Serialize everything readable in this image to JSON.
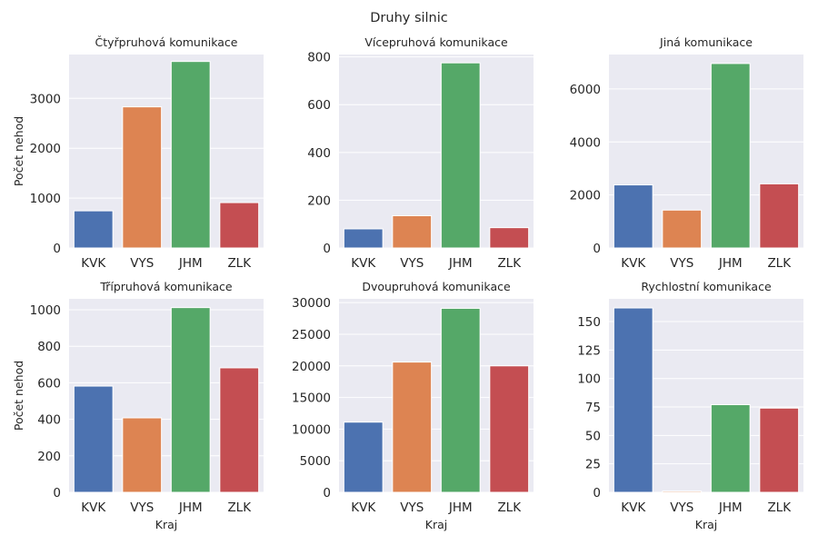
{
  "chart_data": {
    "type": "bar",
    "suptitle": "Druhy silnic",
    "grid": true,
    "colors": [
      "#4c72b0",
      "#dd8452",
      "#55a868",
      "#c44e52"
    ],
    "subplots": [
      {
        "title": "Čtyřpruhová komunikace",
        "categories": [
          "KVK",
          "VYS",
          "JHM",
          "ZLK"
        ],
        "values": [
          745,
          2830,
          3740,
          910
        ],
        "ylim": [
          0,
          3880
        ],
        "yticks": [
          0,
          1000,
          2000,
          3000
        ],
        "ylabel": "Počet nehod",
        "xlabel": ""
      },
      {
        "title": "Vícepruhová komunikace",
        "categories": [
          "KVK",
          "VYS",
          "JHM",
          "ZLK"
        ],
        "values": [
          80,
          135,
          775,
          85
        ],
        "ylim": [
          0,
          810
        ],
        "yticks": [
          0,
          200,
          400,
          600,
          800
        ],
        "ylabel": "",
        "xlabel": ""
      },
      {
        "title": "Jiná komunikace",
        "categories": [
          "KVK",
          "VYS",
          "JHM",
          "ZLK"
        ],
        "values": [
          2380,
          1430,
          6960,
          2420
        ],
        "ylim": [
          0,
          7300
        ],
        "yticks": [
          0,
          2000,
          4000,
          6000
        ],
        "ylabel": "",
        "xlabel": ""
      },
      {
        "title": "Třípruhová komunikace",
        "categories": [
          "KVK",
          "VYS",
          "JHM",
          "ZLK"
        ],
        "values": [
          582,
          408,
          1012,
          682
        ],
        "ylim": [
          0,
          1060
        ],
        "yticks": [
          0,
          200,
          400,
          600,
          800,
          1000
        ],
        "ylabel": "Počet nehod",
        "xlabel": "Kraj"
      },
      {
        "title": "Dvoupruhová komunikace",
        "categories": [
          "KVK",
          "VYS",
          "JHM",
          "ZLK"
        ],
        "values": [
          11100,
          20600,
          29100,
          20000
        ],
        "ylim": [
          0,
          30600
        ],
        "yticks": [
          0,
          5000,
          10000,
          15000,
          20000,
          25000,
          30000
        ],
        "ylabel": "",
        "xlabel": "Kraj"
      },
      {
        "title": "Rychlostní komunikace",
        "categories": [
          "KVK",
          "VYS",
          "JHM",
          "ZLK"
        ],
        "values": [
          162,
          1,
          77,
          74
        ],
        "ylim": [
          0,
          170
        ],
        "yticks": [
          0,
          25,
          50,
          75,
          100,
          125,
          150
        ],
        "ylabel": "",
        "xlabel": "Kraj"
      }
    ]
  }
}
